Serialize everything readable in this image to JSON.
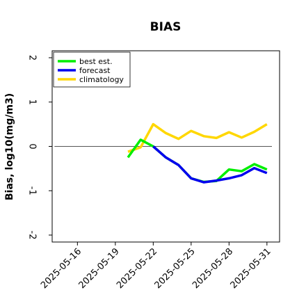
{
  "chart_data": {
    "type": "line",
    "title": "BIAS",
    "xlabel": "",
    "ylabel": "Bias, log10(mg/m3)",
    "ylim": [
      -2,
      2
    ],
    "yticks": [
      {
        "value": 2,
        "label": "2"
      },
      {
        "value": 1,
        "label": "1"
      },
      {
        "value": 0,
        "label": "0"
      },
      {
        "value": -1,
        "label": "-1"
      },
      {
        "value": -2,
        "label": "-2"
      }
    ],
    "xticks": [
      {
        "label": "2025-05-16",
        "highlight": false
      },
      {
        "label": "2025-05-19",
        "highlight": false
      },
      {
        "label": "2025-05-22",
        "highlight": true
      },
      {
        "label": "2025-05-25",
        "highlight": false
      },
      {
        "label": "2025-05-28",
        "highlight": false
      },
      {
        "label": "2025-05-31",
        "highlight": false
      }
    ],
    "x_dates": [
      "2025-05-20",
      "2025-05-21",
      "2025-05-22",
      "2025-05-23",
      "2025-05-24",
      "2025-05-25",
      "2025-05-26",
      "2025-05-27",
      "2025-05-28",
      "2025-05-29",
      "2025-05-30",
      "2025-05-31"
    ],
    "xlim": [
      "2025-05-14",
      "2025-06-01"
    ],
    "reference_line": 0,
    "grid": false,
    "legend_position": "top-left",
    "series": [
      {
        "name": "best est.",
        "color": "#00ee00",
        "values": [
          -0.25,
          0.15,
          0.0,
          -0.25,
          -0.42,
          -0.72,
          -0.8,
          -0.78,
          -0.52,
          -0.56,
          -0.4,
          -0.52
        ]
      },
      {
        "name": "forecast",
        "color": "#0000ee",
        "values": [
          null,
          null,
          0.0,
          -0.25,
          -0.42,
          -0.72,
          -0.81,
          -0.77,
          -0.72,
          -0.65,
          -0.49,
          -0.6
        ]
      },
      {
        "name": "climatology",
        "color": "#ffd700",
        "values": [
          -0.12,
          -0.02,
          0.5,
          0.3,
          0.17,
          0.35,
          0.23,
          0.19,
          0.32,
          0.2,
          0.33,
          0.5
        ]
      }
    ],
    "highlight_color": "#228b22"
  }
}
